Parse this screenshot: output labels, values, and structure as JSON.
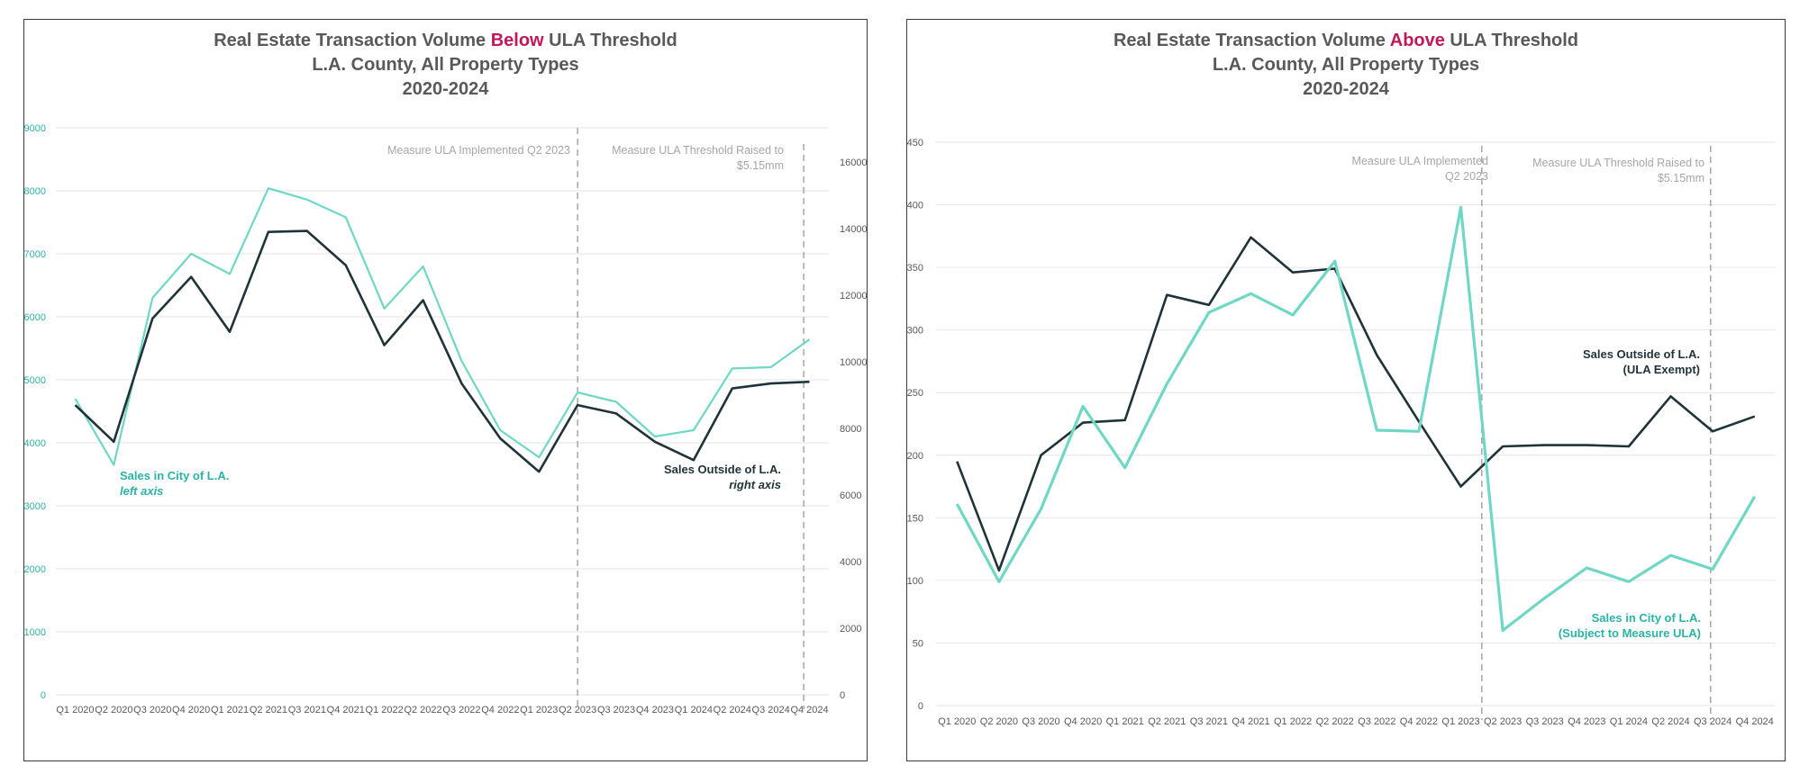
{
  "chart_data": [
    {
      "type": "line",
      "title_prefix": "Real Estate Transaction Volume ",
      "title_highlight": "Below",
      "title_suffix": " ULA Threshold",
      "subtitle1": "L.A. County, All Property Types",
      "subtitle2": "2020-2024",
      "highlight_color": "#c2185b",
      "categories": [
        "Q1 2020",
        "Q2 2020",
        "Q3 2020",
        "Q4 2020",
        "Q1 2021",
        "Q2 2021",
        "Q3 2021",
        "Q4 2021",
        "Q1 2022",
        "Q2 2022",
        "Q3 2022",
        "Q4 2022",
        "Q1 2023",
        "Q2 2023",
        "Q3 2023",
        "Q4 2023",
        "Q1 2024",
        "Q2 2024",
        "Q3 2024",
        "Q4 2024"
      ],
      "left_axis": {
        "min": 0,
        "max": 9000,
        "step": 1000,
        "color": "#2bb3a6",
        "ticks": [
          "0",
          "1000",
          "2000",
          "3000",
          "4000",
          "5000",
          "6000",
          "7000",
          "8000",
          "9000"
        ]
      },
      "right_axis": {
        "min": 0,
        "max": 16000,
        "step": 2000,
        "ticks": [
          "0",
          "2000",
          "4000",
          "6000",
          "8000",
          "10000",
          "12000",
          "14000",
          "16000"
        ]
      },
      "series": [
        {
          "name": "Sales in City of L.A.",
          "axis": "left",
          "color": "#6fd8c4",
          "values": [
            4700,
            3650,
            6300,
            7000,
            6680,
            8040,
            7860,
            7580,
            6130,
            6800,
            5300,
            4200,
            3770,
            4800,
            4650,
            4100,
            4200,
            5180,
            5200,
            5640
          ]
        },
        {
          "name": "Sales Outside of L.A.",
          "axis": "right",
          "color": "#1f3338",
          "values": [
            8700,
            7600,
            11300,
            12550,
            10900,
            13900,
            13930,
            12900,
            10500,
            11850,
            9350,
            7700,
            6700,
            8700,
            8450,
            7600,
            7050,
            9200,
            9350,
            9400
          ]
        }
      ],
      "annotations": {
        "vline1_label": "Measure ULA Implemented Q2 2023",
        "vline2_label_line1": "Measure ULA Threshold Raised to",
        "vline2_label_line2": "$5.15mm",
        "city_label": "Sales in City of L.A.",
        "city_sub": "left axis",
        "outside_label": "Sales Outside of L.A.",
        "outside_sub": "right axis"
      }
    },
    {
      "type": "line",
      "title_prefix": "Real Estate Transaction Volume ",
      "title_highlight": "Above",
      "title_suffix": " ULA Threshold",
      "subtitle1": "L.A. County, All Property Types",
      "subtitle2": "2020-2024",
      "highlight_color": "#c2185b",
      "categories": [
        "Q1 2020",
        "Q2 2020",
        "Q3 2020",
        "Q4 2020",
        "Q1 2021",
        "Q2 2021",
        "Q3 2021",
        "Q4 2021",
        "Q1 2022",
        "Q2 2022",
        "Q3 2022",
        "Q4 2022",
        "Q1 2023",
        "Q2 2023",
        "Q3 2023",
        "Q4 2023",
        "Q1 2024",
        "Q2 2024",
        "Q3 2024",
        "Q4 2024"
      ],
      "axis": {
        "min": 0,
        "max": 450,
        "step": 50,
        "ticks": [
          "0",
          "50",
          "100",
          "150",
          "200",
          "250",
          "300",
          "350",
          "400",
          "450"
        ]
      },
      "series": [
        {
          "name": "Sales Outside of L.A.",
          "color": "#1f3338",
          "values": [
            195,
            108,
            200,
            226,
            228,
            328,
            320,
            374,
            346,
            349,
            280,
            227,
            175,
            207,
            208,
            208,
            207,
            247,
            219,
            231
          ]
        },
        {
          "name": "Sales in City of L.A.",
          "color": "#6fd8c4",
          "values": [
            161,
            99,
            157,
            239,
            190,
            257,
            314,
            329,
            312,
            355,
            220,
            219,
            398,
            60,
            86,
            110,
            99,
            120,
            109,
            167
          ]
        }
      ],
      "annotations": {
        "vline1_label_line1": "Measure ULA Implemented",
        "vline1_label_line2": "Q2 2023",
        "vline2_label_line1": "Measure ULA Threshold Raised to",
        "vline2_label_line2": "$5.15mm",
        "outside_label": "Sales Outside of L.A.",
        "outside_sub": "(ULA Exempt)",
        "city_label": "Sales in City of L.A.",
        "city_sub": "(Subject to Measure ULA)"
      }
    }
  ]
}
